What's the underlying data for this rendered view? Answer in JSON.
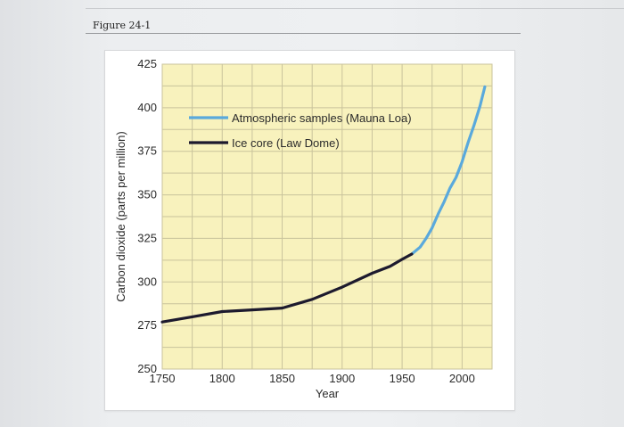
{
  "figure_label": "Figure 24-1",
  "colors": {
    "plot_background": "#f8f2bd",
    "grid": "#c9c39c",
    "atmospheric": "#5aa9dc",
    "ice_core": "#1d1a2e"
  },
  "chart_data": {
    "type": "line",
    "title": "",
    "xlabel": "Year",
    "ylabel": "Carbon dioxide (parts per million)",
    "xlim": [
      1750,
      2025
    ],
    "ylim": [
      250,
      425
    ],
    "xticks": [
      1750,
      1800,
      1850,
      1900,
      1950,
      2000
    ],
    "yticks": [
      250,
      275,
      300,
      325,
      350,
      375,
      400,
      425
    ],
    "grid": true,
    "legend_position": "top-left",
    "series": [
      {
        "name": "Atmospheric samples (Mauna Loa)",
        "x": [
          1958,
          1965,
          1970,
          1975,
          1980,
          1985,
          1990,
          1995,
          2000,
          2005,
          2010,
          2015,
          2019
        ],
        "y": [
          316,
          320,
          325,
          331,
          339,
          346,
          354,
          360,
          369,
          380,
          390,
          401,
          412
        ]
      },
      {
        "name": "Ice core (Law Dome)",
        "x": [
          1750,
          1775,
          1800,
          1825,
          1850,
          1875,
          1900,
          1925,
          1940,
          1950,
          1958
        ],
        "y": [
          277,
          280,
          283,
          284,
          285,
          290,
          297,
          305,
          309,
          313,
          316
        ]
      }
    ]
  }
}
